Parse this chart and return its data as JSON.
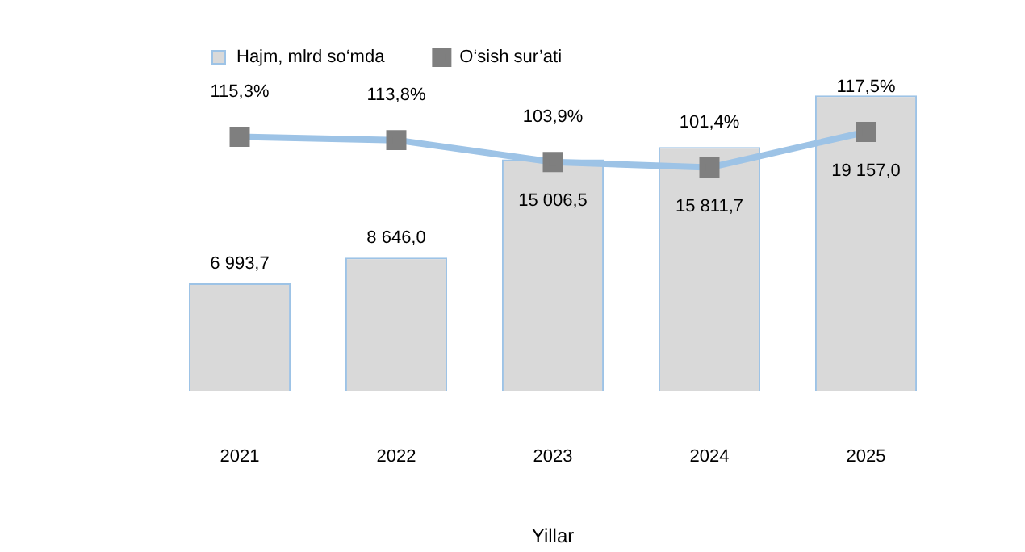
{
  "chart_data": {
    "type": "bar",
    "xlabel": "Yillar",
    "categories": [
      "2021",
      "2022",
      "2023",
      "2024",
      "2025"
    ],
    "series": [
      {
        "name": "Hajm, mlrd so‘mda",
        "color": "#d9d9d9",
        "values": [
          6993.7,
          8646.0,
          15006.5,
          15811.7,
          19157.0
        ],
        "value_labels": [
          "6 993,7",
          "8 646,0",
          "15 006,5",
          "15 811,7",
          "19 157,0"
        ]
      },
      {
        "name": "O‘sish sur’ati",
        "type": "line",
        "axis": "y2",
        "color": "#9dc3e6",
        "values": [
          115.3,
          113.8,
          103.9,
          101.4,
          117.5
        ],
        "value_labels": [
          "115,3%",
          "113,8%",
          "103,9%",
          "101,4%",
          "117,5%"
        ]
      }
    ],
    "tick_labels": "x",
    "marker": "square",
    "grid": false,
    "legend": "top"
  }
}
